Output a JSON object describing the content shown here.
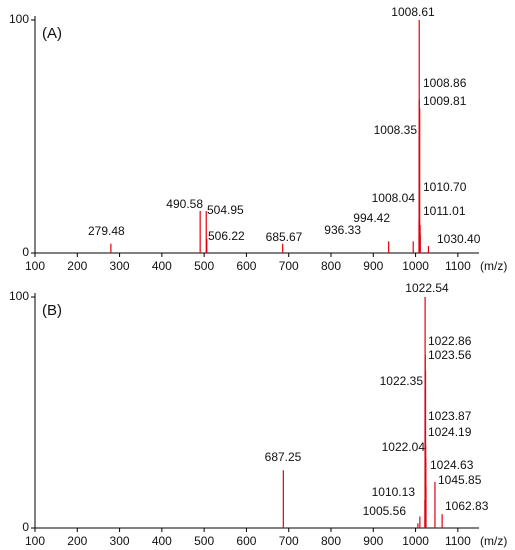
{
  "chart_data": [
    {
      "type": "stem",
      "panel_label": "(A)",
      "xlabel": "(m/z)",
      "xlim": [
        100,
        1150
      ],
      "xticks": [
        100,
        200,
        300,
        400,
        500,
        600,
        700,
        800,
        900,
        1000,
        1100
      ],
      "ylim": [
        0,
        100
      ],
      "yticks": [
        0,
        100
      ],
      "series": [
        {
          "color": "#e3000f",
          "x": [
            279.48,
            490.58,
            504.95,
            506.22,
            685.67,
            936.33,
            994.42,
            1008.04,
            1008.35,
            1008.61,
            1008.86,
            1009.81,
            1010.7,
            1011.01,
            1030.4
          ],
          "values": [
            4,
            18,
            18,
            6,
            4,
            5,
            5,
            14,
            50,
            100,
            66,
            62,
            12,
            8,
            3
          ],
          "labels": [
            "279.48",
            "490.58",
            "504.95",
            "506.22",
            "685.67",
            "936.33",
            "994.42",
            "1008.04",
            "1008.35",
            "1008.61",
            "1008.86",
            "1009.81",
            "1010.70",
            "1011.01",
            "1030.40"
          ]
        }
      ]
    },
    {
      "type": "stem",
      "panel_label": "(B)",
      "xlabel": "(m/z)",
      "xlim": [
        100,
        1150
      ],
      "xticks": [
        100,
        200,
        300,
        400,
        500,
        600,
        700,
        800,
        900,
        1000,
        1100
      ],
      "ylim": [
        0,
        100
      ],
      "yticks": [
        0,
        100
      ],
      "series": [
        {
          "color": "#e3000f",
          "x": [
            687.25,
            1005.56,
            1010.13,
            1022.04,
            1022.35,
            1022.54,
            1022.86,
            1023.56,
            1023.87,
            1024.19,
            1024.63,
            1045.85,
            1062.83
          ],
          "values": [
            25,
            2,
            5,
            12,
            60,
            100,
            75,
            68,
            36,
            30,
            18,
            20,
            6
          ],
          "labels": [
            "687.25",
            "1005.56",
            "1010.13",
            "1022.04",
            "1022.35",
            "1022.54",
            "1022.86",
            "1023.56",
            "1023.87",
            "1024.19",
            "1024.63",
            "1045.85",
            "1062.83"
          ]
        }
      ]
    }
  ]
}
